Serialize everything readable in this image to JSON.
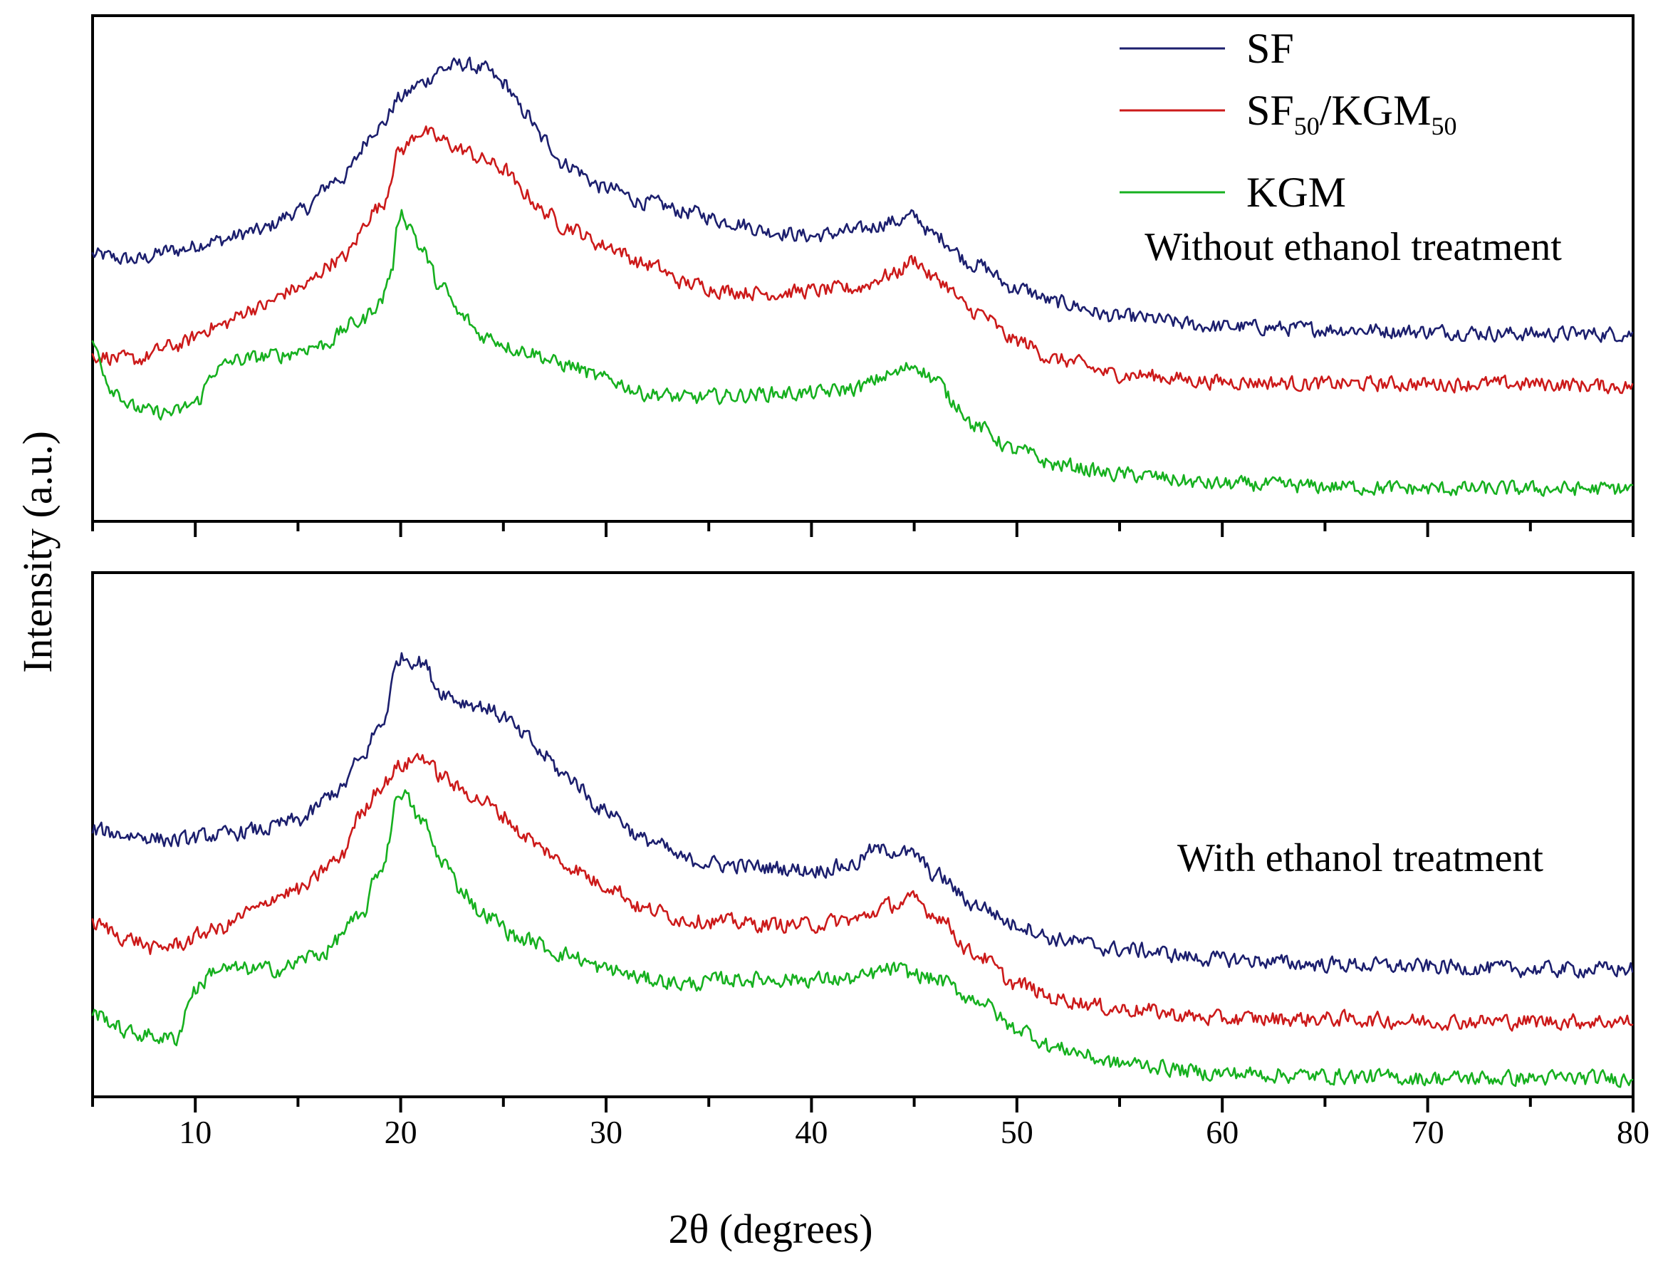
{
  "chart_data": {
    "type": "line",
    "xlabel": "2θ (degrees)",
    "ylabel": "Intensity (a.u.)",
    "xlim": [
      5,
      80
    ],
    "xticks": [
      10,
      20,
      30,
      40,
      50,
      60,
      70,
      80
    ],
    "colors": {
      "SF": "#1c1f6e",
      "SF50/KGM50": "#cc1a1a",
      "KGM": "#16b01f"
    },
    "legend": [
      {
        "key": "SF",
        "label": "SF",
        "sub1": "",
        "mid": "",
        "sub2": ""
      },
      {
        "key": "SF50/KGM50",
        "label": "SF",
        "sub1": "50",
        "mid": "/KGM",
        "sub2": "50"
      },
      {
        "key": "KGM",
        "label": "KGM",
        "sub1": "",
        "mid": "",
        "sub2": ""
      }
    ],
    "panels": [
      {
        "annotation": "Without ethanol treatment",
        "ylim": [
          0,
          1
        ],
        "series": [
          {
            "name": "SF",
            "x": [
              5,
              7,
              9,
              11,
              13,
              15,
              17,
              19,
              20,
              21,
              22,
              23,
              24,
              25,
              26,
              27,
              28,
              30,
              32,
              34,
              36,
              38,
              40,
              42,
              44,
              45,
              46,
              48,
              50,
              52,
              55,
              60,
              65,
              70,
              75,
              80
            ],
            "y": [
              0.54,
              0.53,
              0.55,
              0.57,
              0.59,
              0.63,
              0.7,
              0.81,
              0.87,
              0.9,
              0.93,
              0.94,
              0.93,
              0.9,
              0.84,
              0.78,
              0.73,
              0.68,
              0.65,
              0.63,
              0.61,
              0.59,
              0.58,
              0.59,
              0.61,
              0.62,
              0.58,
              0.52,
              0.47,
              0.44,
              0.41,
              0.39,
              0.385,
              0.38,
              0.375,
              0.375
            ]
          },
          {
            "name": "SF50/KGM50",
            "x": [
              5,
              7,
              9,
              11,
              13,
              15,
              17,
              19,
              20,
              21,
              22,
              23,
              24,
              25,
              26,
              27,
              28,
              30,
              32,
              34,
              36,
              38,
              40,
              42,
              44,
              45,
              46,
              48,
              50,
              52,
              55,
              60,
              65,
              70,
              75,
              80
            ],
            "y": [
              0.33,
              0.32,
              0.35,
              0.39,
              0.43,
              0.47,
              0.53,
              0.64,
              0.76,
              0.8,
              0.78,
              0.76,
              0.74,
              0.72,
              0.67,
              0.63,
              0.6,
              0.56,
              0.52,
              0.48,
              0.465,
              0.46,
              0.465,
              0.47,
              0.5,
              0.53,
              0.49,
              0.42,
              0.36,
              0.32,
              0.29,
              0.275,
              0.27,
              0.27,
              0.27,
              0.265
            ]
          },
          {
            "name": "KGM",
            "x": [
              5,
              6,
              7,
              8,
              9,
              10,
              11,
              12,
              14,
              16,
              18,
              19,
              19.5,
              20,
              20.5,
              21,
              22,
              23,
              24,
              26,
              28,
              30,
              32,
              34,
              36,
              38,
              40,
              42,
              44,
              45,
              46,
              47,
              48,
              50,
              52,
              55,
              60,
              65,
              70,
              75,
              80
            ],
            "y": [
              0.35,
              0.26,
              0.22,
              0.21,
              0.21,
              0.23,
              0.3,
              0.32,
              0.33,
              0.35,
              0.4,
              0.44,
              0.5,
              0.63,
              0.6,
              0.55,
              0.47,
              0.41,
              0.37,
              0.34,
              0.31,
              0.28,
              0.25,
              0.24,
              0.245,
              0.25,
              0.25,
              0.26,
              0.29,
              0.31,
              0.28,
              0.23,
              0.18,
              0.13,
              0.1,
              0.08,
              0.06,
              0.055,
              0.05,
              0.05,
              0.05
            ]
          }
        ]
      },
      {
        "annotation": "With ethanol treatment",
        "ylim": [
          0,
          1
        ],
        "series": [
          {
            "name": "SF",
            "x": [
              5,
              7,
              9,
              11,
              13,
              15,
              17,
              18,
              19,
              20,
              21,
              22,
              23,
              24,
              25,
              26,
              27,
              28,
              30,
              32,
              34,
              36,
              38,
              40,
              42,
              43,
              44,
              45,
              46,
              48,
              50,
              52,
              55,
              60,
              65,
              70,
              75,
              80
            ],
            "y": [
              0.52,
              0.51,
              0.5,
              0.51,
              0.52,
              0.54,
              0.6,
              0.66,
              0.73,
              0.87,
              0.86,
              0.8,
              0.78,
              0.77,
              0.75,
              0.71,
              0.67,
              0.63,
              0.56,
              0.5,
              0.46,
              0.45,
              0.445,
              0.44,
              0.45,
              0.48,
              0.48,
              0.47,
              0.43,
              0.37,
              0.33,
              0.3,
              0.28,
              0.26,
              0.25,
              0.245,
              0.24,
              0.24
            ]
          },
          {
            "name": "SF50/KGM50",
            "x": [
              5,
              7,
              8,
              9,
              11,
              13,
              14,
              15,
              17,
              18,
              19,
              20,
              21,
              22,
              23,
              24,
              25,
              26,
              27,
              28,
              30,
              32,
              34,
              36,
              38,
              40,
              42,
              44,
              45,
              46,
              48,
              50,
              52,
              55,
              60,
              65,
              70,
              75,
              80
            ],
            "y": [
              0.33,
              0.3,
              0.28,
              0.29,
              0.32,
              0.36,
              0.39,
              0.4,
              0.46,
              0.55,
              0.61,
              0.65,
              0.67,
              0.63,
              0.6,
              0.58,
              0.55,
              0.51,
              0.48,
              0.45,
              0.41,
              0.36,
              0.34,
              0.335,
              0.33,
              0.33,
              0.34,
              0.37,
              0.38,
              0.35,
              0.27,
              0.21,
              0.18,
              0.16,
              0.14,
              0.14,
              0.135,
              0.135,
              0.135
            ]
          },
          {
            "name": "KGM",
            "x": [
              5,
              7,
              9,
              10,
              11,
              12,
              14,
              16,
              18,
              19,
              20,
              21,
              22,
              23,
              24,
              26,
              28,
              30,
              32,
              34,
              36,
              38,
              40,
              42,
              44,
              45,
              46,
              48,
              50,
              52,
              55,
              60,
              65,
              70,
              75,
              80
            ],
            "y": [
              0.15,
              0.11,
              0.1,
              0.2,
              0.24,
              0.24,
              0.24,
              0.27,
              0.34,
              0.44,
              0.6,
              0.54,
              0.46,
              0.4,
              0.35,
              0.3,
              0.27,
              0.24,
              0.22,
              0.21,
              0.22,
              0.22,
              0.22,
              0.22,
              0.24,
              0.23,
              0.22,
              0.18,
              0.12,
              0.08,
              0.05,
              0.03,
              0.025,
              0.02,
              0.02,
              0.02
            ]
          }
        ]
      }
    ]
  }
}
